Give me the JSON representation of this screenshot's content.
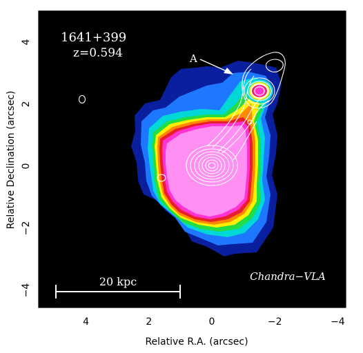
{
  "image": {
    "title": "1641+399",
    "redshift": "z=0.594",
    "feature_label": "A",
    "scale_bar_label": "20 kpc",
    "credit": "Chandra−VLA",
    "colormap": [
      "#000000",
      "#0a1f9e",
      "#1e78ff",
      "#00d7d7",
      "#22dd44",
      "#ffee00",
      "#ff8800",
      "#e81e2e",
      "#ff33d2",
      "#ff8ff2"
    ],
    "contour_color": "#ffffff"
  },
  "axes": {
    "xlabel": "Relative R.A. (arcsec)",
    "ylabel": "Relative Declination (arcsec)",
    "x_ticks": [
      {
        "value": 4,
        "label": "4"
      },
      {
        "value": 2,
        "label": "2"
      },
      {
        "value": 0,
        "label": "0"
      },
      {
        "value": -2,
        "label": "−2"
      },
      {
        "value": -4,
        "label": "−4"
      }
    ],
    "y_ticks": [
      {
        "value": 4,
        "label": "4"
      },
      {
        "value": 2,
        "label": "2"
      },
      {
        "value": 0,
        "label": "0"
      },
      {
        "value": -2,
        "label": "−2"
      },
      {
        "value": -4,
        "label": "−4"
      }
    ],
    "xlim": [
      5.5,
      -4.4
    ],
    "ylim": [
      -4.5,
      5.0
    ],
    "x_reversed": true
  }
}
